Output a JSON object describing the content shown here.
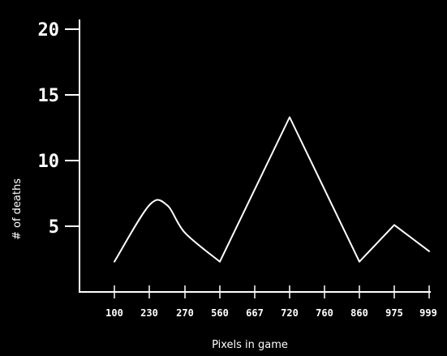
{
  "chart_data": {
    "type": "line",
    "title": "",
    "xlabel": "Pixels in game",
    "ylabel": "# of deaths",
    "categories": [
      "100",
      "230",
      "270",
      "560",
      "667",
      "720",
      "760",
      "860",
      "975",
      "999"
    ],
    "yticks": [
      "5",
      "10",
      "15",
      "20"
    ],
    "ylim": [
      0,
      21
    ],
    "grid": false,
    "series": [
      {
        "color": "#ffffff",
        "x": [
          100,
          230,
          250,
          270,
          560,
          720,
          860,
          975,
          999
        ],
        "y": [
          2.3,
          6.6,
          6.6,
          4.5,
          2.3,
          13.3,
          2.3,
          5.1,
          3.1
        ],
        "smooth_until": 4
      }
    ]
  }
}
